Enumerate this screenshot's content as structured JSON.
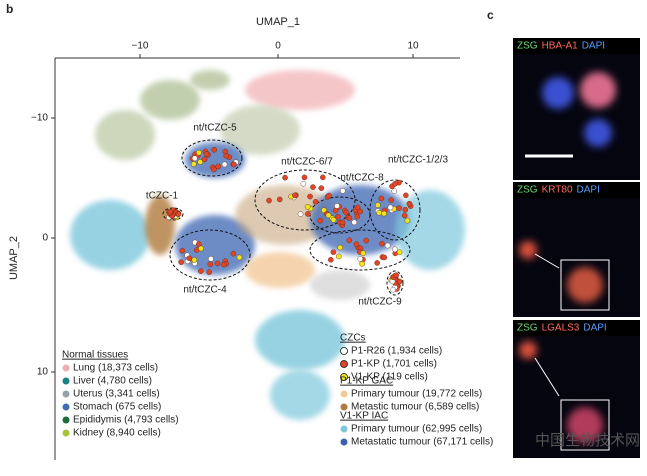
{
  "panel_b": {
    "label": "b",
    "x_axis_title": "UMAP_1",
    "y_axis_title": "UMAP_2",
    "x_ticks": [
      "−10",
      "0",
      "10"
    ],
    "y_ticks": [
      "−10",
      "0",
      "10"
    ],
    "cluster_labels": [
      "nt/tCZC-5",
      "nt/tCZC-6/7",
      "nt/tCZC-1/2/3",
      "nt/tCZC-8",
      "tCZC-1",
      "nt/tCZC-4",
      "nt/tCZC-9"
    ],
    "normal_tissues": {
      "title": "Normal tissues",
      "items": [
        "Lung (18,373 cells)",
        "Liver  (4,780 cells)",
        "Uterus (3,341 cells)",
        "Stomach (675 cells)",
        "Epididymis (4,793 cells)",
        "Kidney (8,940 cells)"
      ]
    },
    "czcs": {
      "title": "CZCs",
      "items": [
        "P1-R26 (1,934 cells)",
        "P1-KP (1,701 cells)",
        "V1-KP (119 cells)"
      ]
    },
    "p1kp_gac": {
      "title": "P1-KP GAC",
      "items": [
        "Primary tumour (19,772 cells)",
        "Metastic tumour (6,589 cells)"
      ]
    },
    "v1kp_iac": {
      "title": "V1-KP IAC",
      "items": [
        "Primary tumour (62,995 cells)",
        "Metastatic tumour (67,171 cells)"
      ]
    }
  },
  "panel_c": {
    "label": "c",
    "images": [
      {
        "labels": [
          "ZSG",
          "HBA-A1",
          "DAPI"
        ]
      },
      {
        "labels": [
          "ZSG",
          "KRT80",
          "DAPI"
        ]
      },
      {
        "labels": [
          "ZSG",
          "LGALS3",
          "DAPI"
        ]
      }
    ]
  },
  "watermark": "中国生物技术网"
}
